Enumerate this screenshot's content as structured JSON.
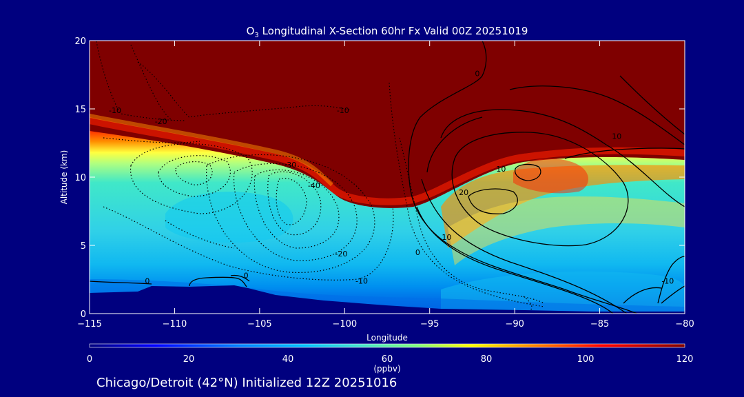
{
  "chart_data": {
    "type": "heatmap",
    "title_prefix": "O",
    "title_sub": "3",
    "title_rest": " Longitudinal X-Section 60hr  Fx Valid 00Z 20251019",
    "xlabel": "Longitude",
    "ylabel": "Altitude (km)",
    "xlim": [
      -115,
      -80
    ],
    "ylim": [
      0,
      20
    ],
    "x_ticks": [
      -115,
      -110,
      -105,
      -100,
      -95,
      -90,
      -85,
      -80
    ],
    "x_tick_labels": [
      "−115",
      "−110",
      "−105",
      "−100",
      "−95",
      "−90",
      "−85",
      "−80"
    ],
    "y_ticks": [
      0,
      5,
      10,
      15,
      20
    ],
    "y_tick_labels": [
      "0",
      "5",
      "10",
      "15",
      "20"
    ],
    "colorbar": {
      "min": 0,
      "max": 120,
      "ticks": [
        0,
        20,
        40,
        60,
        80,
        100,
        120
      ],
      "tick_labels": [
        "0",
        "20",
        "40",
        "60",
        "80",
        "100",
        "120"
      ],
      "unit_label": "(ppbv)",
      "colors": [
        "#00007f",
        "#0000ff",
        "#007fff",
        "#00bfff",
        "#40e0d0",
        "#7fff7f",
        "#ffff00",
        "#ff7f00",
        "#ff0000",
        "#7f0000"
      ]
    },
    "contour_labels": [
      {
        "text": "-10",
        "lon": -113.5,
        "alt": 14.9
      },
      {
        "text": "-20",
        "lon": -110.8,
        "alt": 14.1
      },
      {
        "text": "-10",
        "lon": -100.1,
        "alt": 14.9
      },
      {
        "text": "0",
        "lon": -92.2,
        "alt": 17.6
      },
      {
        "text": "-30",
        "lon": -103.2,
        "alt": 10.9
      },
      {
        "text": "-40",
        "lon": -101.8,
        "alt": 9.4
      },
      {
        "text": "10",
        "lon": -90.8,
        "alt": 10.6
      },
      {
        "text": "10",
        "lon": -84.0,
        "alt": 13.0
      },
      {
        "text": "20",
        "lon": -93.0,
        "alt": 8.9
      },
      {
        "text": "10",
        "lon": -94.0,
        "alt": 5.6
      },
      {
        "text": "0",
        "lon": -95.7,
        "alt": 4.5
      },
      {
        "text": "-20",
        "lon": -100.2,
        "alt": 4.4
      },
      {
        "text": "-10",
        "lon": -99.0,
        "alt": 2.4
      },
      {
        "text": "0",
        "lon": -111.6,
        "alt": 2.4
      },
      {
        "text": "0",
        "lon": -105.8,
        "alt": 2.8
      },
      {
        "text": "-10",
        "lon": -81.0,
        "alt": 2.4
      }
    ]
  },
  "footer": "Chicago/Detroit (42°N) Initialized 12Z 20251016"
}
